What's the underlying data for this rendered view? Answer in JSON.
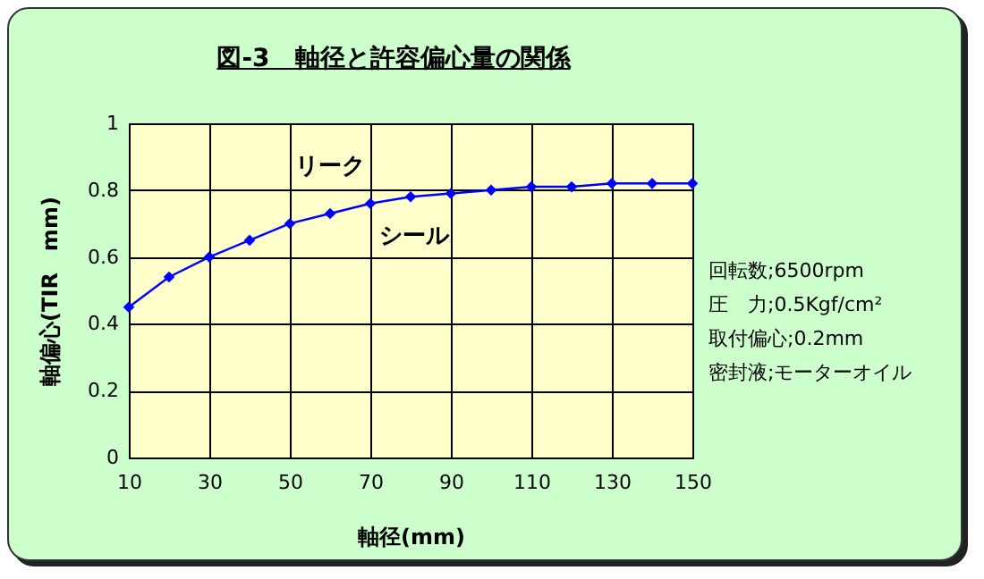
{
  "chart_data": {
    "type": "line",
    "title": "図-3　軸径と許容偏心量の関係",
    "xlabel": "軸径(mm)",
    "ylabel": "軸偏心(TIR　mm)",
    "x": [
      10,
      20,
      30,
      40,
      50,
      60,
      70,
      80,
      90,
      100,
      110,
      120,
      130,
      140,
      150
    ],
    "series": [
      {
        "color": "#0000ff",
        "values": [
          0.45,
          0.54,
          0.6,
          0.65,
          0.7,
          0.73,
          0.76,
          0.78,
          0.79,
          0.8,
          0.81,
          0.81,
          0.82,
          0.82,
          0.82
        ]
      }
    ],
    "xlim": [
      10,
      150
    ],
    "xticks": [
      10,
      30,
      50,
      70,
      90,
      110,
      130,
      150
    ],
    "ylim": [
      0,
      1
    ],
    "yticks": [
      0,
      0.2,
      0.4,
      0.6,
      0.8,
      1
    ],
    "grid": true,
    "marker": "diamond",
    "line_style": "solid",
    "legend": false,
    "annotations": [
      "リーク",
      "シール",
      "回転数;6500rpm",
      "圧　力;0.5Kgf/cm²",
      "取付偏心;0.2mm",
      "密封液;モーターオイル"
    ]
  }
}
